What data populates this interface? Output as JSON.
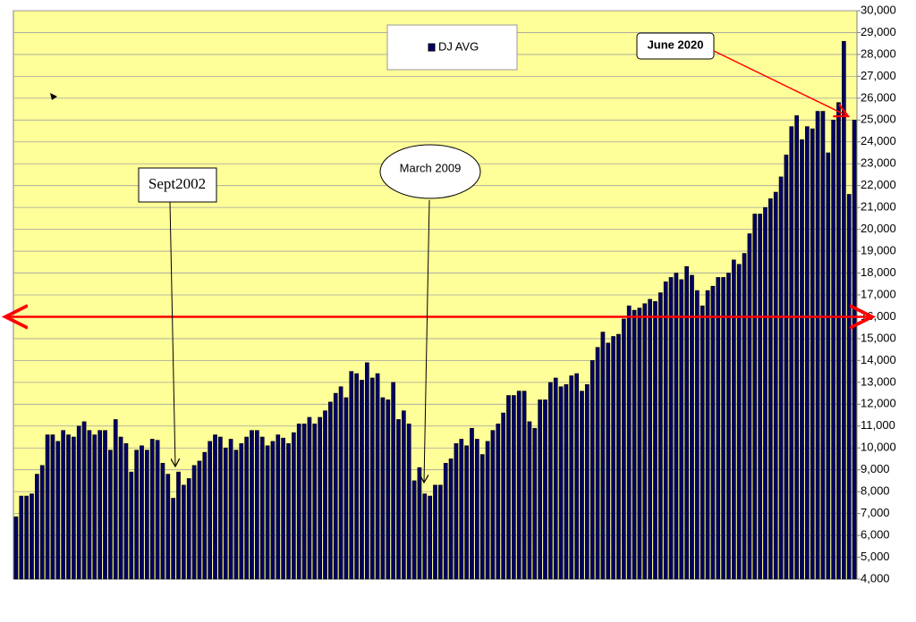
{
  "chart_data": {
    "type": "bar",
    "categories": [
      null,
      null,
      null,
      null,
      null,
      null,
      null,
      null,
      null,
      null,
      null,
      null,
      null,
      null,
      null,
      null,
      null,
      null,
      null,
      null,
      null,
      null,
      null,
      null,
      null,
      null,
      null,
      null,
      null,
      null,
      null,
      null,
      null,
      null,
      null,
      null,
      null,
      null,
      null,
      null,
      null,
      null,
      null,
      null,
      null,
      null,
      null,
      null,
      null,
      null,
      null,
      null,
      null,
      null,
      null,
      null,
      null,
      null,
      null,
      null,
      null,
      null,
      null,
      null,
      null,
      null,
      null,
      null,
      null,
      null,
      null,
      null,
      null,
      null,
      null,
      null,
      null,
      null,
      null,
      null,
      null,
      null,
      null,
      null,
      null,
      null,
      null,
      null,
      null,
      null,
      null,
      null,
      null,
      null,
      null,
      null,
      null,
      null,
      null,
      null,
      null,
      null,
      null,
      null,
      null,
      null,
      null,
      null,
      null,
      null,
      null,
      null,
      null,
      null,
      null,
      null,
      null,
      null,
      null,
      null,
      null,
      null,
      null,
      null,
      null,
      null,
      null,
      null,
      null,
      null,
      null,
      null,
      null,
      null,
      null,
      null,
      null,
      null,
      null,
      null,
      null,
      null,
      null,
      null,
      null,
      null,
      null,
      null,
      null,
      null,
      null,
      null,
      null,
      null,
      null,
      null,
      null,
      null,
      null,
      null,
      null
    ],
    "series": [
      {
        "name": "DJ AVG",
        "color": "#000066",
        "values": [
          6850,
          7800,
          7800,
          7900,
          8800,
          9200,
          10600,
          10600,
          10300,
          10800,
          10600,
          10500,
          11000,
          11200,
          10800,
          10600,
          10800,
          10800,
          9900,
          11300,
          10500,
          10200,
          8900,
          9900,
          10100,
          9900,
          10400,
          10350,
          9300,
          8800,
          7700,
          8900,
          8300,
          8600,
          9200,
          9400,
          9800,
          10300,
          10600,
          10500,
          10000,
          10400,
          9900,
          10200,
          10500,
          10800,
          10800,
          10500,
          10100,
          10300,
          10600,
          10450,
          10200,
          10700,
          11100,
          11100,
          11400,
          11100,
          11400,
          11700,
          12100,
          12500,
          12800,
          12300,
          13500,
          13400,
          13100,
          13900,
          13200,
          13400,
          12300,
          12200,
          13000,
          11300,
          11700,
          11100,
          8500,
          9100,
          7900,
          7800,
          8300,
          8300,
          9300,
          9500,
          10200,
          10400,
          10100,
          10900,
          10400,
          9700,
          10300,
          10800,
          11100,
          11600,
          12400,
          12400,
          12600,
          12600,
          11200,
          10900,
          12200,
          12200,
          13000,
          13200,
          12800,
          12900,
          13300,
          13400,
          12600,
          12900,
          14000,
          14600,
          15300,
          14800,
          15100,
          15200,
          15900,
          16500,
          16300,
          16400,
          16600,
          16800,
          16700,
          17100,
          17600,
          17800,
          18000,
          17700,
          18300,
          17900,
          17200,
          16500,
          17200,
          17400,
          17800,
          17800,
          18000,
          18600,
          18400,
          18900,
          19800,
          20700,
          20700,
          21000,
          21400,
          21700,
          22400,
          23400,
          24700,
          25200,
          24100,
          24700,
          24600,
          25400,
          25400,
          23500,
          25000,
          25800,
          28600,
          21600,
          25000
        ]
      }
    ],
    "ylim": [
      4000,
      30000
    ],
    "yticks": [
      {
        "value": 4000,
        "label": "4,000"
      },
      {
        "value": 5000,
        "label": "5,000"
      },
      {
        "value": 6000,
        "label": "6,000"
      },
      {
        "value": 7000,
        "label": "7,000"
      },
      {
        "value": 8000,
        "label": "8,000"
      },
      {
        "value": 9000,
        "label": "9,000"
      },
      {
        "value": 10000,
        "label": "10,000"
      },
      {
        "value": 11000,
        "label": "11,000"
      },
      {
        "value": 12000,
        "label": "12,000"
      },
      {
        "value": 13000,
        "label": "13,000"
      },
      {
        "value": 14000,
        "label": "14,000"
      },
      {
        "value": 15000,
        "label": "15,000"
      },
      {
        "value": 16000,
        "label": "16,000"
      },
      {
        "value": 17000,
        "label": "17,000"
      },
      {
        "value": 18000,
        "label": "18,000"
      },
      {
        "value": 19000,
        "label": "19,000"
      },
      {
        "value": 20000,
        "label": "20,000"
      },
      {
        "value": 21000,
        "label": "21,000"
      },
      {
        "value": 22000,
        "label": "22,000"
      },
      {
        "value": 23000,
        "label": "23,000"
      },
      {
        "value": 24000,
        "label": "24,000"
      },
      {
        "value": 25000,
        "label": "25,000"
      },
      {
        "value": 26000,
        "label": "26,000"
      },
      {
        "value": 27000,
        "label": "27,000"
      },
      {
        "value": 28000,
        "label": "28,000"
      },
      {
        "value": 29000,
        "label": "29,000"
      },
      {
        "value": 30000,
        "label": "30,000"
      }
    ],
    "grid": true,
    "reference_line": {
      "value": 16000,
      "color": "#ff0000"
    },
    "annotations": [
      {
        "text": "Sept2002"
      },
      {
        "text": "March 2009"
      },
      {
        "text": "June 2020"
      }
    ]
  }
}
